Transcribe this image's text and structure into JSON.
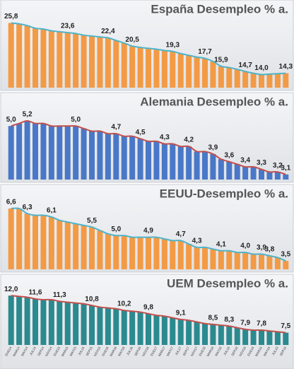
{
  "chart_data": [
    {
      "type": "bar",
      "title": "España Desempleo % a.",
      "color": "#f39a45",
      "line_color": "#4fb3c8",
      "ylim": [
        11,
        27.5
      ],
      "values": [
        25.8,
        25.6,
        25.2,
        24.6,
        24.4,
        24.0,
        23.8,
        23.6,
        23.4,
        23.0,
        22.8,
        22.6,
        22.4,
        21.8,
        21.2,
        20.5,
        20.2,
        20.0,
        19.8,
        19.5,
        19.3,
        18.8,
        18.4,
        18.0,
        17.7,
        17.0,
        15.9,
        15.6,
        15.2,
        14.7,
        14.3,
        14.0,
        14.1,
        14.2,
        14.3
      ],
      "value_labels": [
        "25,8",
        null,
        null,
        null,
        null,
        null,
        null,
        "23,6",
        null,
        null,
        null,
        null,
        "22,4",
        null,
        null,
        "20,5",
        null,
        null,
        null,
        null,
        "19,3",
        null,
        null,
        null,
        "17,7",
        null,
        "15,9",
        null,
        null,
        "14,7",
        null,
        "14,0",
        null,
        null,
        "14,3"
      ]
    },
    {
      "type": "bar",
      "title": "Alemania Desempleo  % a.",
      "color": "#4a78c8",
      "line_color": "#c0504d",
      "ylim": [
        2.9,
        5.7
      ],
      "values": [
        5.0,
        5.1,
        5.2,
        5.1,
        5.1,
        5.0,
        5.0,
        5.0,
        5.0,
        4.9,
        4.8,
        4.8,
        4.7,
        4.7,
        4.6,
        4.6,
        4.5,
        4.4,
        4.4,
        4.3,
        4.3,
        4.2,
        4.2,
        4.0,
        4.0,
        3.9,
        3.7,
        3.6,
        3.5,
        3.4,
        3.4,
        3.3,
        3.2,
        3.2,
        3.1
      ],
      "value_labels": [
        "5,0",
        null,
        "5,2",
        null,
        null,
        null,
        null,
        null,
        "5,0",
        null,
        null,
        null,
        null,
        "4,7",
        null,
        null,
        "4,5",
        null,
        null,
        "4,3",
        null,
        null,
        "4,2",
        null,
        null,
        "3,9",
        null,
        "3,6",
        null,
        "3,4",
        null,
        "3,3",
        null,
        "3,2",
        "3,1"
      ]
    },
    {
      "type": "bar",
      "title": "EEUU-Desempleo % a.",
      "color": "#f39a45",
      "line_color": "#4fb3c8",
      "ylim": [
        3.0,
        7.1
      ],
      "values": [
        6.6,
        6.6,
        6.3,
        6.2,
        6.2,
        6.1,
        5.9,
        5.8,
        5.7,
        5.6,
        5.5,
        5.3,
        5.1,
        5.0,
        5.0,
        4.9,
        4.9,
        4.9,
        4.9,
        4.8,
        4.7,
        4.7,
        4.5,
        4.3,
        4.3,
        4.2,
        4.1,
        4.1,
        4.0,
        4.0,
        3.9,
        3.9,
        3.8,
        3.7,
        3.5
      ],
      "value_labels": [
        "6,6",
        null,
        "6,3",
        null,
        null,
        "6,1",
        null,
        null,
        null,
        null,
        "5,5",
        null,
        null,
        "5,0",
        null,
        null,
        null,
        "4,9",
        null,
        null,
        null,
        "4,7",
        null,
        "4,3",
        null,
        null,
        "4,1",
        null,
        null,
        "4,0",
        null,
        "3,9",
        "3,8",
        null,
        "3,5"
      ]
    },
    {
      "type": "bar",
      "title": "UEM  Desempleo % a.",
      "color": "#2a8a8f",
      "line_color": "#c0504d",
      "ylim": [
        6.0,
        12.7
      ],
      "categories": [
        "ENE14",
        "MAR14",
        "MAY14",
        "JUL14",
        "SEP14",
        "NOV14",
        "ENE15",
        "MAR15",
        "MAY15",
        "JUL15",
        "SEP15",
        "NOV15",
        "ENE16",
        "MAR16",
        "MAY16",
        "JUL16",
        "SEP16",
        "NOV16",
        "ENE17",
        "MAR17",
        "MAY17",
        "JUL17",
        "SEP17",
        "NOV17",
        "ENE18",
        "MAR18",
        "MAY18",
        "JUL18",
        "SEP18",
        "NOV18",
        "ENE19",
        "MAR19",
        "MAY19",
        "JUL19",
        "SEP19"
      ],
      "values": [
        12.0,
        11.9,
        11.8,
        11.6,
        11.5,
        11.5,
        11.3,
        11.2,
        11.1,
        11.0,
        10.8,
        10.6,
        10.5,
        10.4,
        10.2,
        10.1,
        10.0,
        9.8,
        9.6,
        9.5,
        9.3,
        9.1,
        9.0,
        8.8,
        8.6,
        8.5,
        8.4,
        8.3,
        8.1,
        7.9,
        7.8,
        7.8,
        7.7,
        7.6,
        7.5
      ],
      "value_labels": [
        "12,0",
        null,
        null,
        "11,6",
        null,
        null,
        "11,3",
        null,
        null,
        null,
        "10,8",
        null,
        null,
        null,
        "10,2",
        null,
        null,
        "9,8",
        null,
        null,
        null,
        "9,1",
        null,
        null,
        null,
        "8,5",
        null,
        "8,3",
        null,
        "7,9",
        null,
        "7,8",
        null,
        null,
        "7,5"
      ]
    }
  ]
}
